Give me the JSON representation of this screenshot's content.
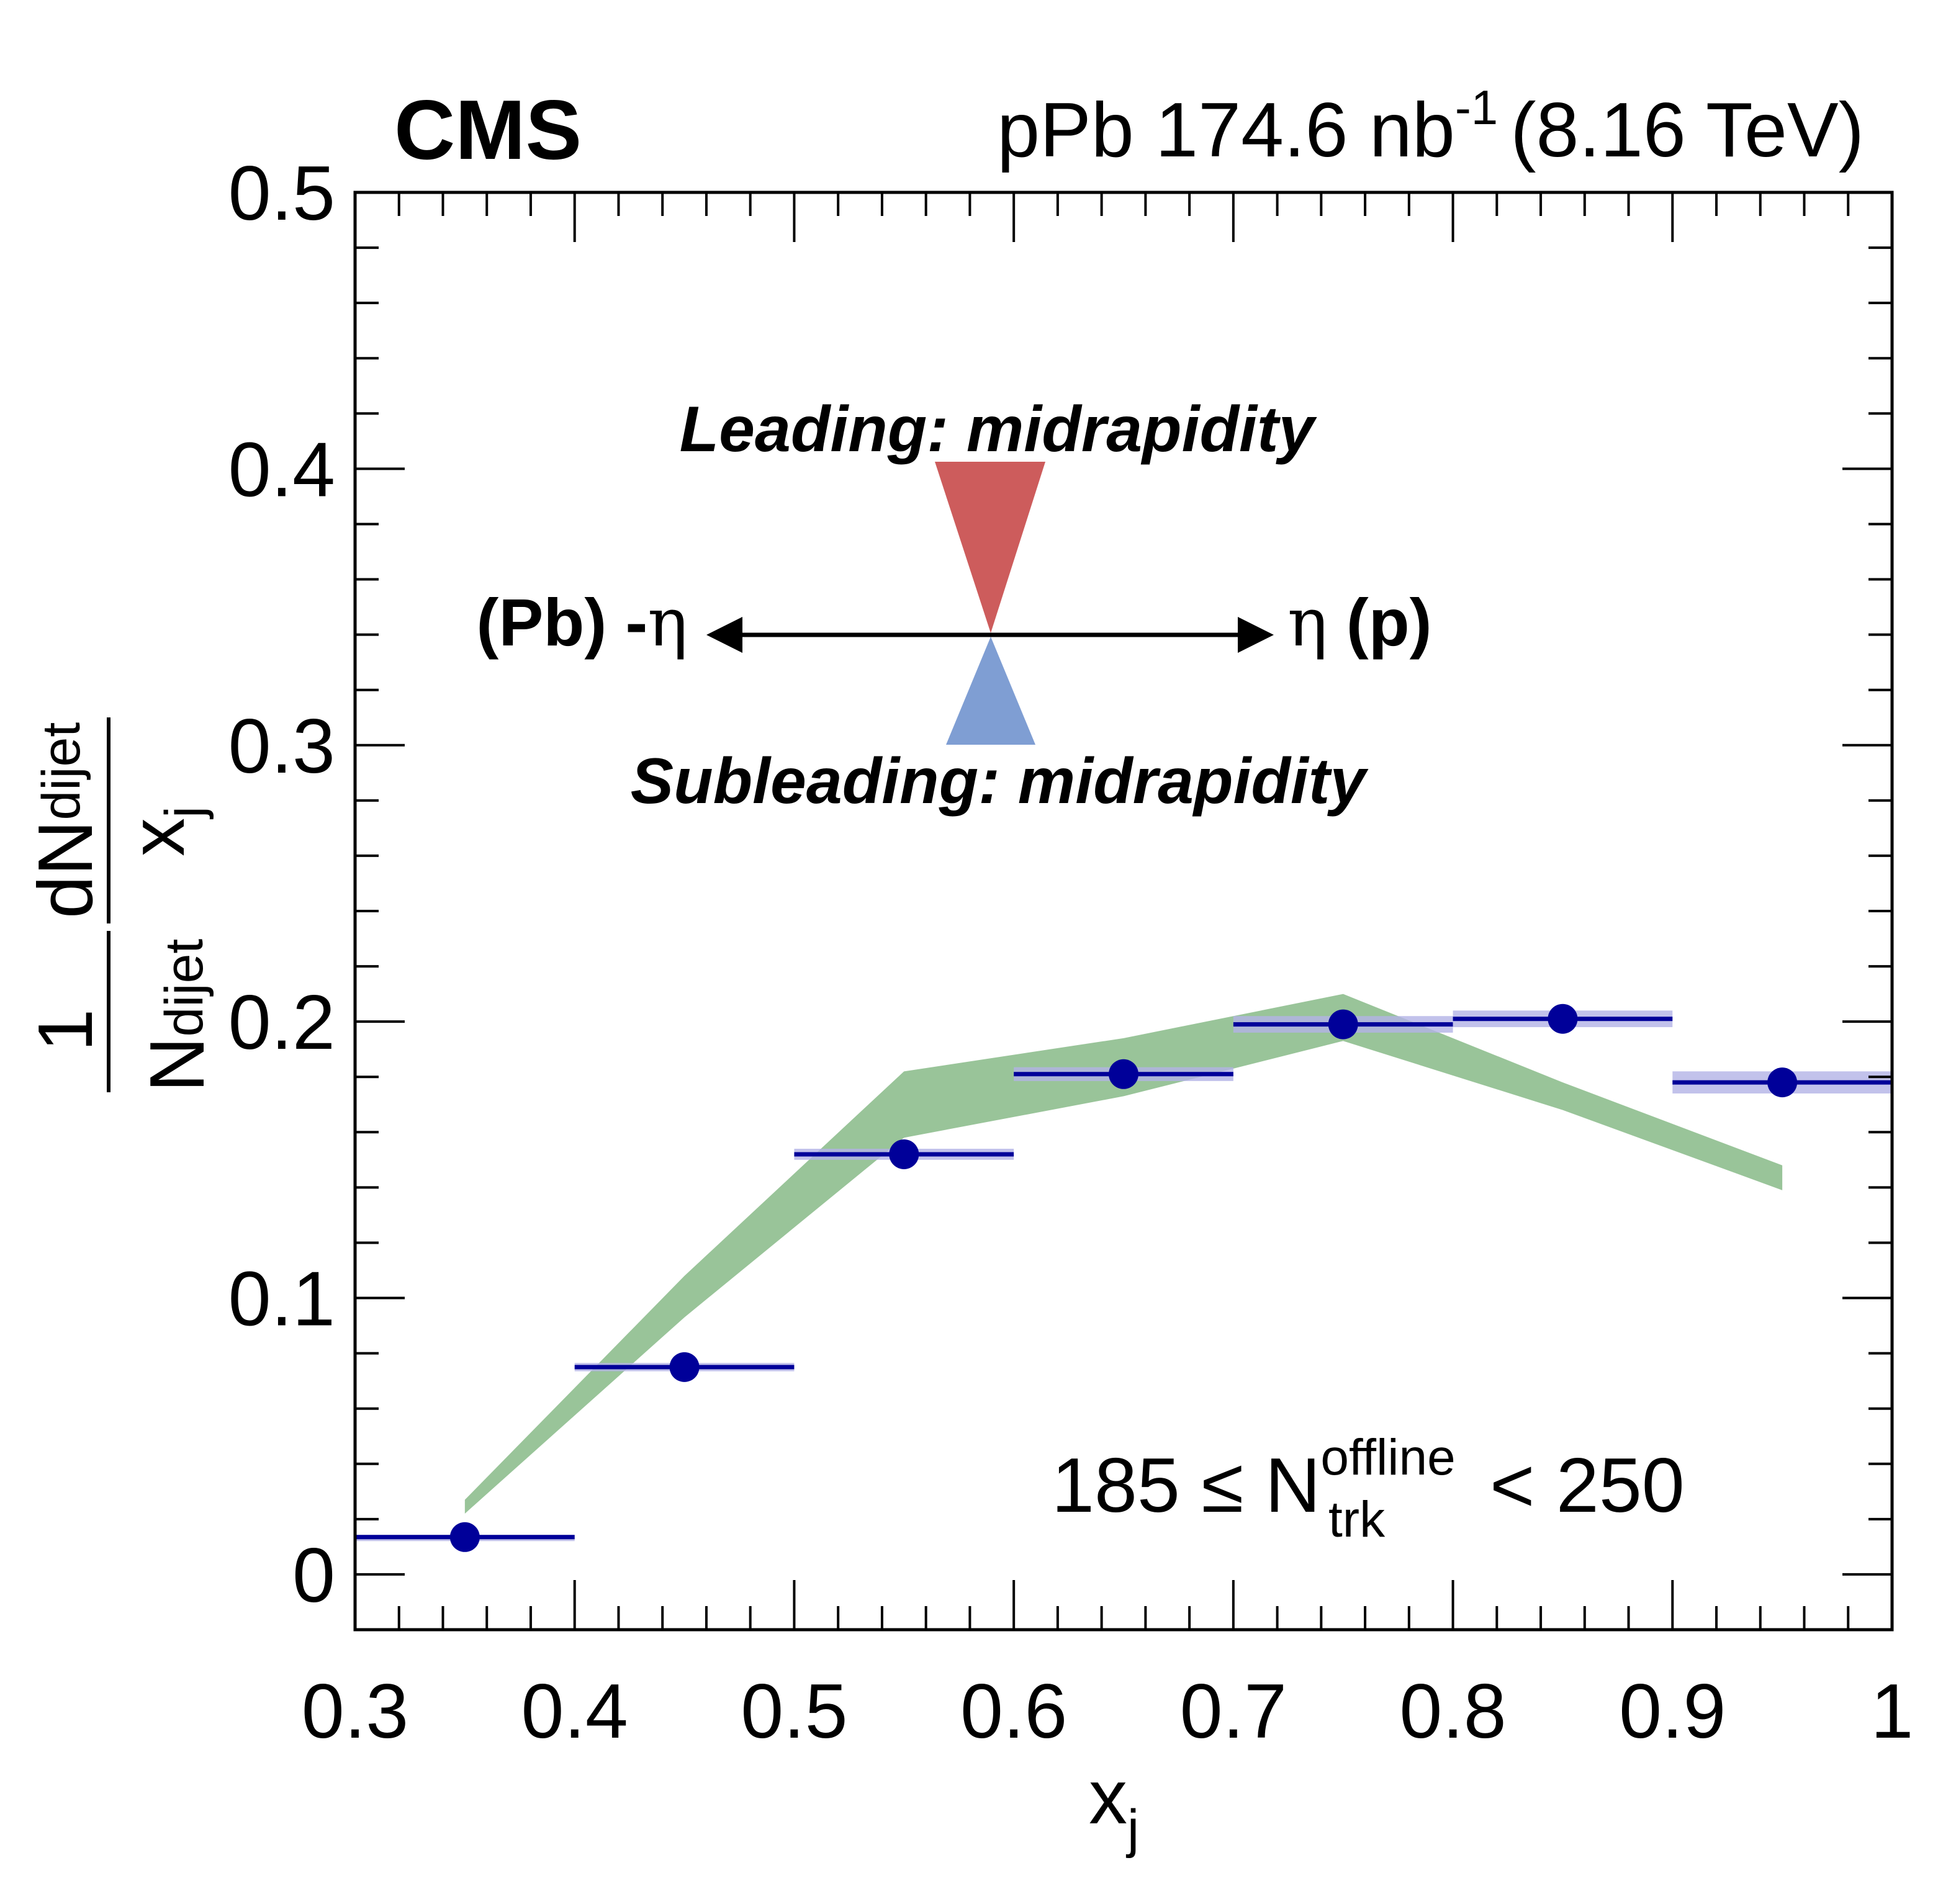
{
  "chart_data": {
    "type": "scatter",
    "experiment": "CMS",
    "lumi_text": {
      "prefix": "pPb 174.6 nb",
      "exponent": "-1",
      "suffix": "(8.16 TeV)"
    },
    "xlabel": {
      "main": "x",
      "sub": "j"
    },
    "ylabel": {
      "numerator": {
        "main": "dN",
        "sub": "dijet"
      },
      "denominator_small": {
        "main": "x",
        "sub": "j"
      },
      "one": "1",
      "normalization": {
        "main": "N",
        "sub": "dijet"
      }
    },
    "xlim": [
      0.3,
      1.0
    ],
    "ylim": [
      -0.02,
      0.5
    ],
    "x_ticks": [
      0.3,
      0.4,
      0.5,
      0.6,
      0.7,
      0.8,
      0.9,
      1.0
    ],
    "x_tick_labels": [
      "0.3",
      "0.4",
      "0.5",
      "0.6",
      "0.7",
      "0.8",
      "0.9",
      "1"
    ],
    "y_ticks": [
      0,
      0.1,
      0.2,
      0.3,
      0.4,
      0.5
    ],
    "y_tick_labels": [
      "0",
      "0.1",
      "0.2",
      "0.3",
      "0.4",
      "0.5"
    ],
    "data_series": {
      "color": "#000099",
      "syst_color": "#b3b3e6",
      "bin_half_width": 0.05,
      "points": [
        {
          "x": 0.35,
          "y": 0.0135,
          "syst": 0.0008
        },
        {
          "x": 0.45,
          "y": 0.075,
          "syst": 0.0015
        },
        {
          "x": 0.55,
          "y": 0.152,
          "syst": 0.002
        },
        {
          "x": 0.65,
          "y": 0.181,
          "syst": 0.0025
        },
        {
          "x": 0.75,
          "y": 0.199,
          "syst": 0.003
        },
        {
          "x": 0.85,
          "y": 0.201,
          "syst": 0.003
        },
        {
          "x": 0.95,
          "y": 0.178,
          "syst": 0.004
        }
      ]
    },
    "band_series": {
      "color": "#99c499",
      "x": [
        0.35,
        0.45,
        0.55,
        0.65,
        0.75,
        0.85,
        0.95
      ],
      "low": [
        0.022,
        0.093,
        0.158,
        0.173,
        0.193,
        0.168,
        0.139
      ],
      "high": [
        0.027,
        0.108,
        0.182,
        0.194,
        0.21,
        0.178,
        0.148
      ]
    },
    "annotations": {
      "leading": {
        "text": "Leading: midrapidity",
        "color": "#cd5c5c"
      },
      "subleading": {
        "text": "Subleading: midrapidity",
        "color": "#7f9ed3"
      },
      "left_arrow_label": {
        "prefix": "(Pb) -",
        "symbol": "η"
      },
      "right_arrow_label": {
        "symbol": "η",
        "suffix": " (p)"
      },
      "multiplicity": {
        "prefix": "185 ≤ N",
        "sup": "offline",
        "sub": "trk",
        "suffix": "< 250"
      }
    },
    "grid": false,
    "legend": "none"
  }
}
